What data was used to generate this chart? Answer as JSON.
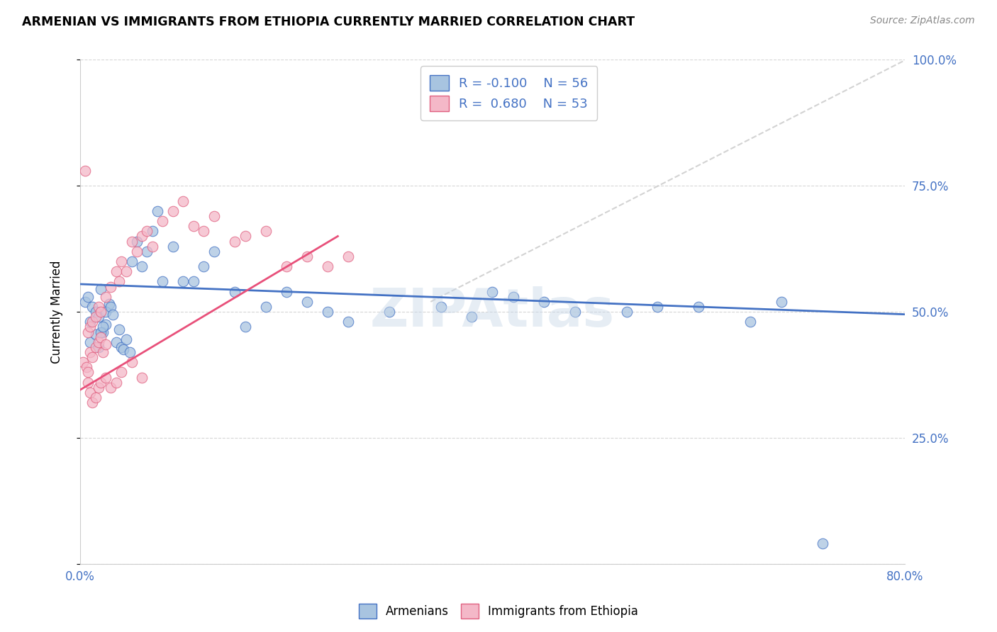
{
  "title": "ARMENIAN VS IMMIGRANTS FROM ETHIOPIA CURRENTLY MARRIED CORRELATION CHART",
  "source": "Source: ZipAtlas.com",
  "ylabel": "Currently Married",
  "x_min": 0.0,
  "x_max": 0.8,
  "y_min": 0.0,
  "y_max": 1.0,
  "x_tick_positions": [
    0.0,
    0.1,
    0.2,
    0.3,
    0.4,
    0.5,
    0.6,
    0.7,
    0.8
  ],
  "x_tick_labels": [
    "0.0%",
    "",
    "",
    "",
    "",
    "",
    "",
    "",
    "80.0%"
  ],
  "y_tick_positions": [
    0.0,
    0.25,
    0.5,
    0.75,
    1.0
  ],
  "y_tick_labels_right": [
    "",
    "25.0%",
    "50.0%",
    "75.0%",
    "100.0%"
  ],
  "legend_label1": "Armenians",
  "legend_label2": "Immigrants from Ethiopia",
  "dot_color_blue": "#a8c4e0",
  "dot_edge_blue": "#4472c4",
  "dot_color_pink": "#f4b8c8",
  "dot_edge_pink": "#e06080",
  "line_color_blue": "#4472c4",
  "line_color_pink": "#e8507a",
  "line_color_diag": "#c8c8c8",
  "watermark": "ZIPAtlas",
  "blue_R": -0.1,
  "blue_N": 56,
  "pink_R": 0.68,
  "pink_N": 53,
  "armenians_x": [
    0.005,
    0.008,
    0.01,
    0.012,
    0.015,
    0.018,
    0.02,
    0.022,
    0.025,
    0.028,
    0.01,
    0.015,
    0.018,
    0.02,
    0.022,
    0.025,
    0.03,
    0.032,
    0.035,
    0.038,
    0.04,
    0.042,
    0.045,
    0.048,
    0.05,
    0.055,
    0.06,
    0.065,
    0.07,
    0.075,
    0.08,
    0.09,
    0.1,
    0.11,
    0.12,
    0.13,
    0.15,
    0.16,
    0.18,
    0.2,
    0.22,
    0.24,
    0.26,
    0.3,
    0.35,
    0.38,
    0.4,
    0.42,
    0.45,
    0.48,
    0.53,
    0.56,
    0.6,
    0.65,
    0.68,
    0.72
  ],
  "armenians_y": [
    0.52,
    0.53,
    0.48,
    0.51,
    0.5,
    0.49,
    0.545,
    0.46,
    0.475,
    0.515,
    0.44,
    0.455,
    0.43,
    0.46,
    0.47,
    0.5,
    0.51,
    0.495,
    0.44,
    0.465,
    0.43,
    0.425,
    0.445,
    0.42,
    0.6,
    0.64,
    0.59,
    0.62,
    0.66,
    0.7,
    0.56,
    0.63,
    0.56,
    0.56,
    0.59,
    0.62,
    0.54,
    0.47,
    0.51,
    0.54,
    0.52,
    0.5,
    0.48,
    0.5,
    0.51,
    0.49,
    0.54,
    0.53,
    0.52,
    0.5,
    0.5,
    0.51,
    0.51,
    0.48,
    0.52,
    0.04
  ],
  "ethiopia_x": [
    0.003,
    0.006,
    0.008,
    0.01,
    0.012,
    0.015,
    0.018,
    0.02,
    0.022,
    0.025,
    0.008,
    0.01,
    0.012,
    0.015,
    0.018,
    0.02,
    0.025,
    0.03,
    0.035,
    0.038,
    0.04,
    0.045,
    0.05,
    0.055,
    0.06,
    0.065,
    0.07,
    0.08,
    0.09,
    0.1,
    0.11,
    0.12,
    0.13,
    0.15,
    0.16,
    0.18,
    0.2,
    0.22,
    0.24,
    0.26,
    0.005,
    0.008,
    0.01,
    0.012,
    0.015,
    0.018,
    0.02,
    0.025,
    0.03,
    0.035,
    0.04,
    0.05,
    0.06
  ],
  "ethiopia_y": [
    0.4,
    0.39,
    0.38,
    0.42,
    0.41,
    0.43,
    0.44,
    0.45,
    0.42,
    0.435,
    0.46,
    0.47,
    0.48,
    0.49,
    0.51,
    0.5,
    0.53,
    0.55,
    0.58,
    0.56,
    0.6,
    0.58,
    0.64,
    0.62,
    0.65,
    0.66,
    0.63,
    0.68,
    0.7,
    0.72,
    0.67,
    0.66,
    0.69,
    0.64,
    0.65,
    0.66,
    0.59,
    0.61,
    0.59,
    0.61,
    0.78,
    0.36,
    0.34,
    0.32,
    0.33,
    0.35,
    0.36,
    0.37,
    0.35,
    0.36,
    0.38,
    0.4,
    0.37
  ]
}
